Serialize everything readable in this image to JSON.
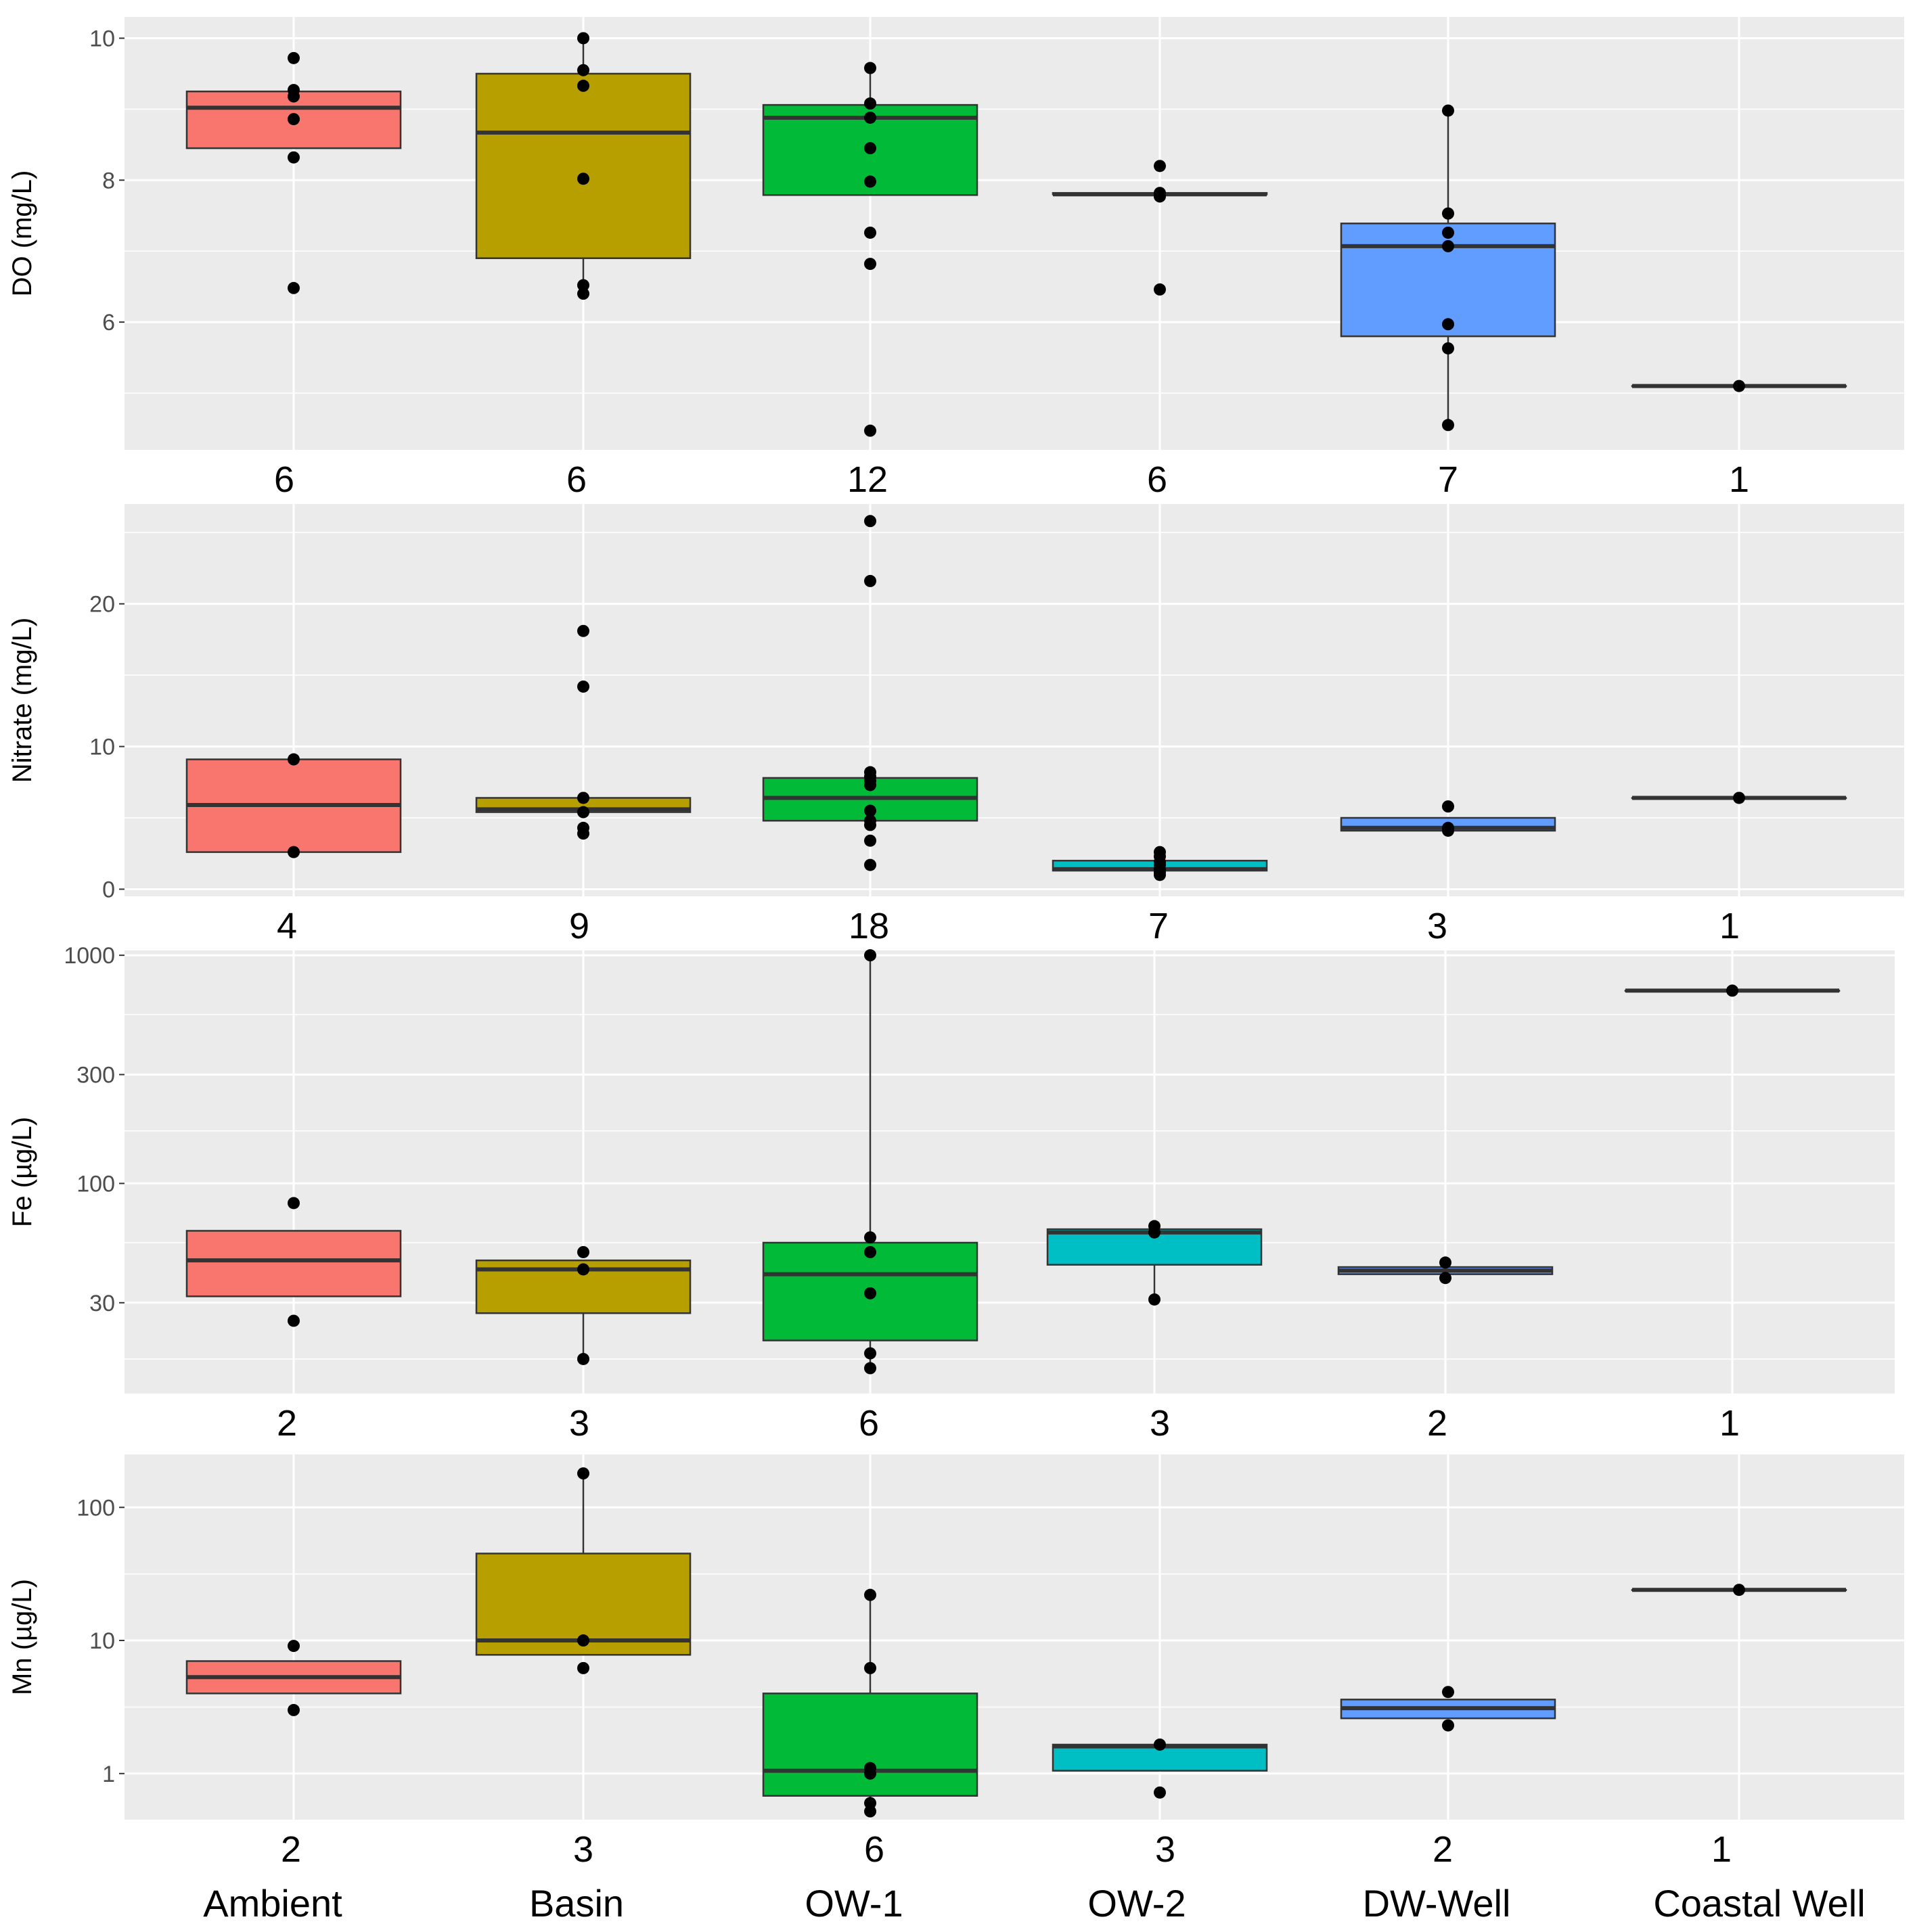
{
  "colors": {
    "Ambient": "#F8766D",
    "Basin": "#B79F00",
    "OW-1": "#00BA38",
    "OW-2": "#00BFC4",
    "DW-Well": "#619CFF",
    "Coastal Well": "#F564E3",
    "panel_bg": "#EBEBEB",
    "grid": "#FFFFFF",
    "line": "#333333",
    "point": "#000000"
  },
  "x_categories": [
    "Ambient",
    "Basin",
    "OW-1",
    "OW-2",
    "DW-Well",
    "Coastal Well"
  ],
  "chart_data": [
    {
      "type": "box",
      "ylabel": "DO (mg/L)",
      "scale": "linear",
      "ylim": [
        4.2,
        10.3
      ],
      "yticks": [
        6,
        8,
        10
      ],
      "ytick_labels": [
        "6",
        "8",
        "10"
      ],
      "yminor": [
        5,
        7,
        9
      ],
      "groups": [
        {
          "name": "Ambient",
          "n": "6",
          "q1": 8.45,
          "median": 9.02,
          "q3": 9.25,
          "wlo": 8.45,
          "whi": 9.25,
          "points": [
            9.72,
            9.27,
            9.18,
            8.86,
            8.32,
            6.48
          ]
        },
        {
          "name": "Basin",
          "n": "6",
          "q1": 6.9,
          "median": 8.67,
          "q3": 9.5,
          "wlo": 6.4,
          "whi": 10.0,
          "points": [
            10.0,
            9.55,
            9.33,
            8.02,
            6.52,
            6.4
          ]
        },
        {
          "name": "OW-1",
          "n": "12",
          "q1": 7.79,
          "median": 8.88,
          "q3": 9.06,
          "wlo": 7.79,
          "whi": 9.58,
          "points": [
            9.58,
            9.08,
            8.88,
            8.45,
            7.98,
            7.26,
            6.82,
            4.47
          ]
        },
        {
          "name": "OW-2",
          "n": "6",
          "q1": 7.8,
          "median": 7.8,
          "q3": 7.82,
          "wlo": 7.8,
          "whi": 7.82,
          "points": [
            8.2,
            7.82,
            7.77,
            6.46
          ]
        },
        {
          "name": "DW-Well",
          "n": "7",
          "q1": 5.8,
          "median": 7.07,
          "q3": 7.39,
          "wlo": 4.55,
          "whi": 8.98,
          "points": [
            8.98,
            7.53,
            7.26,
            7.07,
            5.97,
            5.63,
            4.55
          ]
        },
        {
          "name": "Coastal Well",
          "n": "1",
          "q1": 5.1,
          "median": 5.1,
          "q3": 5.1,
          "wlo": 5.1,
          "whi": 5.1,
          "points": [
            5.1
          ]
        }
      ]
    },
    {
      "type": "box",
      "ylabel": "Nitrate (mg/L)",
      "scale": "linear",
      "ylim": [
        -0.5,
        27.0
      ],
      "yticks": [
        0,
        10,
        20
      ],
      "ytick_labels": [
        "0",
        "10",
        "20"
      ],
      "yminor": [
        5,
        15,
        25
      ],
      "groups": [
        {
          "name": "Ambient",
          "n": "4",
          "q1": 2.6,
          "median": 5.9,
          "q3": 9.1,
          "wlo": 2.6,
          "whi": 9.1,
          "points": [
            9.1,
            2.6
          ]
        },
        {
          "name": "Basin",
          "n": "9",
          "q1": 5.4,
          "median": 5.6,
          "q3": 6.4,
          "wlo": 5.4,
          "whi": 6.4,
          "points": [
            18.1,
            14.2,
            6.4,
            5.4,
            4.3,
            3.9
          ]
        },
        {
          "name": "OW-1",
          "n": "18",
          "q1": 4.8,
          "median": 6.4,
          "q3": 7.8,
          "wlo": 4.8,
          "whi": 7.8,
          "points": [
            25.8,
            21.6,
            8.2,
            7.9,
            7.6,
            7.3,
            5.5,
            4.8,
            4.5,
            3.4,
            1.7
          ]
        },
        {
          "name": "OW-2",
          "n": "7",
          "q1": 1.3,
          "median": 1.4,
          "q3": 2.0,
          "wlo": 1.3,
          "whi": 2.0,
          "points": [
            2.6,
            2.3,
            1.9,
            1.7,
            1.4,
            1.2,
            1.0
          ]
        },
        {
          "name": "DW-Well",
          "n": "3",
          "q1": 4.1,
          "median": 4.3,
          "q3": 5.0,
          "wlo": 4.1,
          "whi": 5.0,
          "points": [
            5.8,
            4.3,
            4.1
          ]
        },
        {
          "name": "Coastal Well",
          "n": "1",
          "q1": 6.4,
          "median": 6.4,
          "q3": 6.4,
          "wlo": 6.4,
          "whi": 6.4,
          "points": [
            6.4
          ]
        }
      ]
    },
    {
      "type": "box",
      "ylabel": "Fe (µg/L)",
      "scale": "log10",
      "ylim": [
        12,
        1050
      ],
      "yticks": [
        30,
        100,
        300,
        1000
      ],
      "ytick_labels": [
        "30",
        "100",
        "300",
        "1000"
      ],
      "yminor": [
        17,
        55,
        170,
        550
      ],
      "groups": [
        {
          "name": "Ambient",
          "n": "2",
          "q1": 32,
          "median": 46,
          "q3": 62,
          "wlo": 32,
          "whi": 62,
          "points": [
            82,
            25
          ]
        },
        {
          "name": "Basin",
          "n": "3",
          "q1": 27,
          "median": 42,
          "q3": 46,
          "wlo": 17,
          "whi": 46,
          "points": [
            50,
            42,
            17
          ]
        },
        {
          "name": "OW-1",
          "n": "6",
          "q1": 20.5,
          "median": 40,
          "q3": 55,
          "wlo": 15.5,
          "whi": 1000,
          "points": [
            1000,
            58,
            50,
            33,
            18,
            15.5
          ]
        },
        {
          "name": "OW-2",
          "n": "3",
          "q1": 44,
          "median": 61,
          "q3": 63,
          "wlo": 31,
          "whi": 63,
          "points": [
            65,
            61,
            31
          ]
        },
        {
          "name": "DW-Well",
          "n": "2",
          "q1": 40,
          "median": 41.5,
          "q3": 43,
          "wlo": 40,
          "whi": 43,
          "points": [
            45,
            38.5
          ]
        },
        {
          "name": "Coastal Well",
          "n": "1",
          "q1": 700,
          "median": 700,
          "q3": 700,
          "wlo": 700,
          "whi": 700,
          "points": [
            700
          ]
        }
      ]
    },
    {
      "type": "box",
      "ylabel": "Mn (µg/L)",
      "scale": "log10",
      "ylim": [
        0.45,
        250
      ],
      "yticks": [
        1,
        10,
        100
      ],
      "ytick_labels": [
        "1",
        "10",
        "100"
      ],
      "yminor": [
        3.16,
        31.6
      ],
      "groups": [
        {
          "name": "Ambient",
          "n": "2",
          "q1": 4.0,
          "median": 5.3,
          "q3": 7.0,
          "wlo": 4.0,
          "whi": 7.0,
          "points": [
            9.1,
            3.0
          ]
        },
        {
          "name": "Basin",
          "n": "3",
          "q1": 7.8,
          "median": 10.0,
          "q3": 45.0,
          "wlo": 7.8,
          "whi": 180.0,
          "points": [
            180.0,
            10.0,
            6.2
          ]
        },
        {
          "name": "OW-1",
          "n": "6",
          "q1": 0.68,
          "median": 1.05,
          "q3": 4.0,
          "wlo": 0.52,
          "whi": 22.0,
          "points": [
            22.0,
            6.2,
            1.1,
            1.0,
            0.6,
            0.52
          ]
        },
        {
          "name": "OW-2",
          "n": "3",
          "q1": 1.05,
          "median": 1.6,
          "q3": 1.65,
          "wlo": 1.05,
          "whi": 1.65,
          "points": [
            1.65,
            0.72
          ]
        },
        {
          "name": "DW-Well",
          "n": "2",
          "q1": 2.6,
          "median": 3.1,
          "q3": 3.6,
          "wlo": 2.6,
          "whi": 3.6,
          "points": [
            4.1,
            2.3
          ]
        },
        {
          "name": "Coastal Well",
          "n": "1",
          "q1": 24.0,
          "median": 24.0,
          "q3": 24.0,
          "wlo": 24.0,
          "whi": 24.0,
          "points": [
            24.0
          ]
        }
      ]
    }
  ]
}
